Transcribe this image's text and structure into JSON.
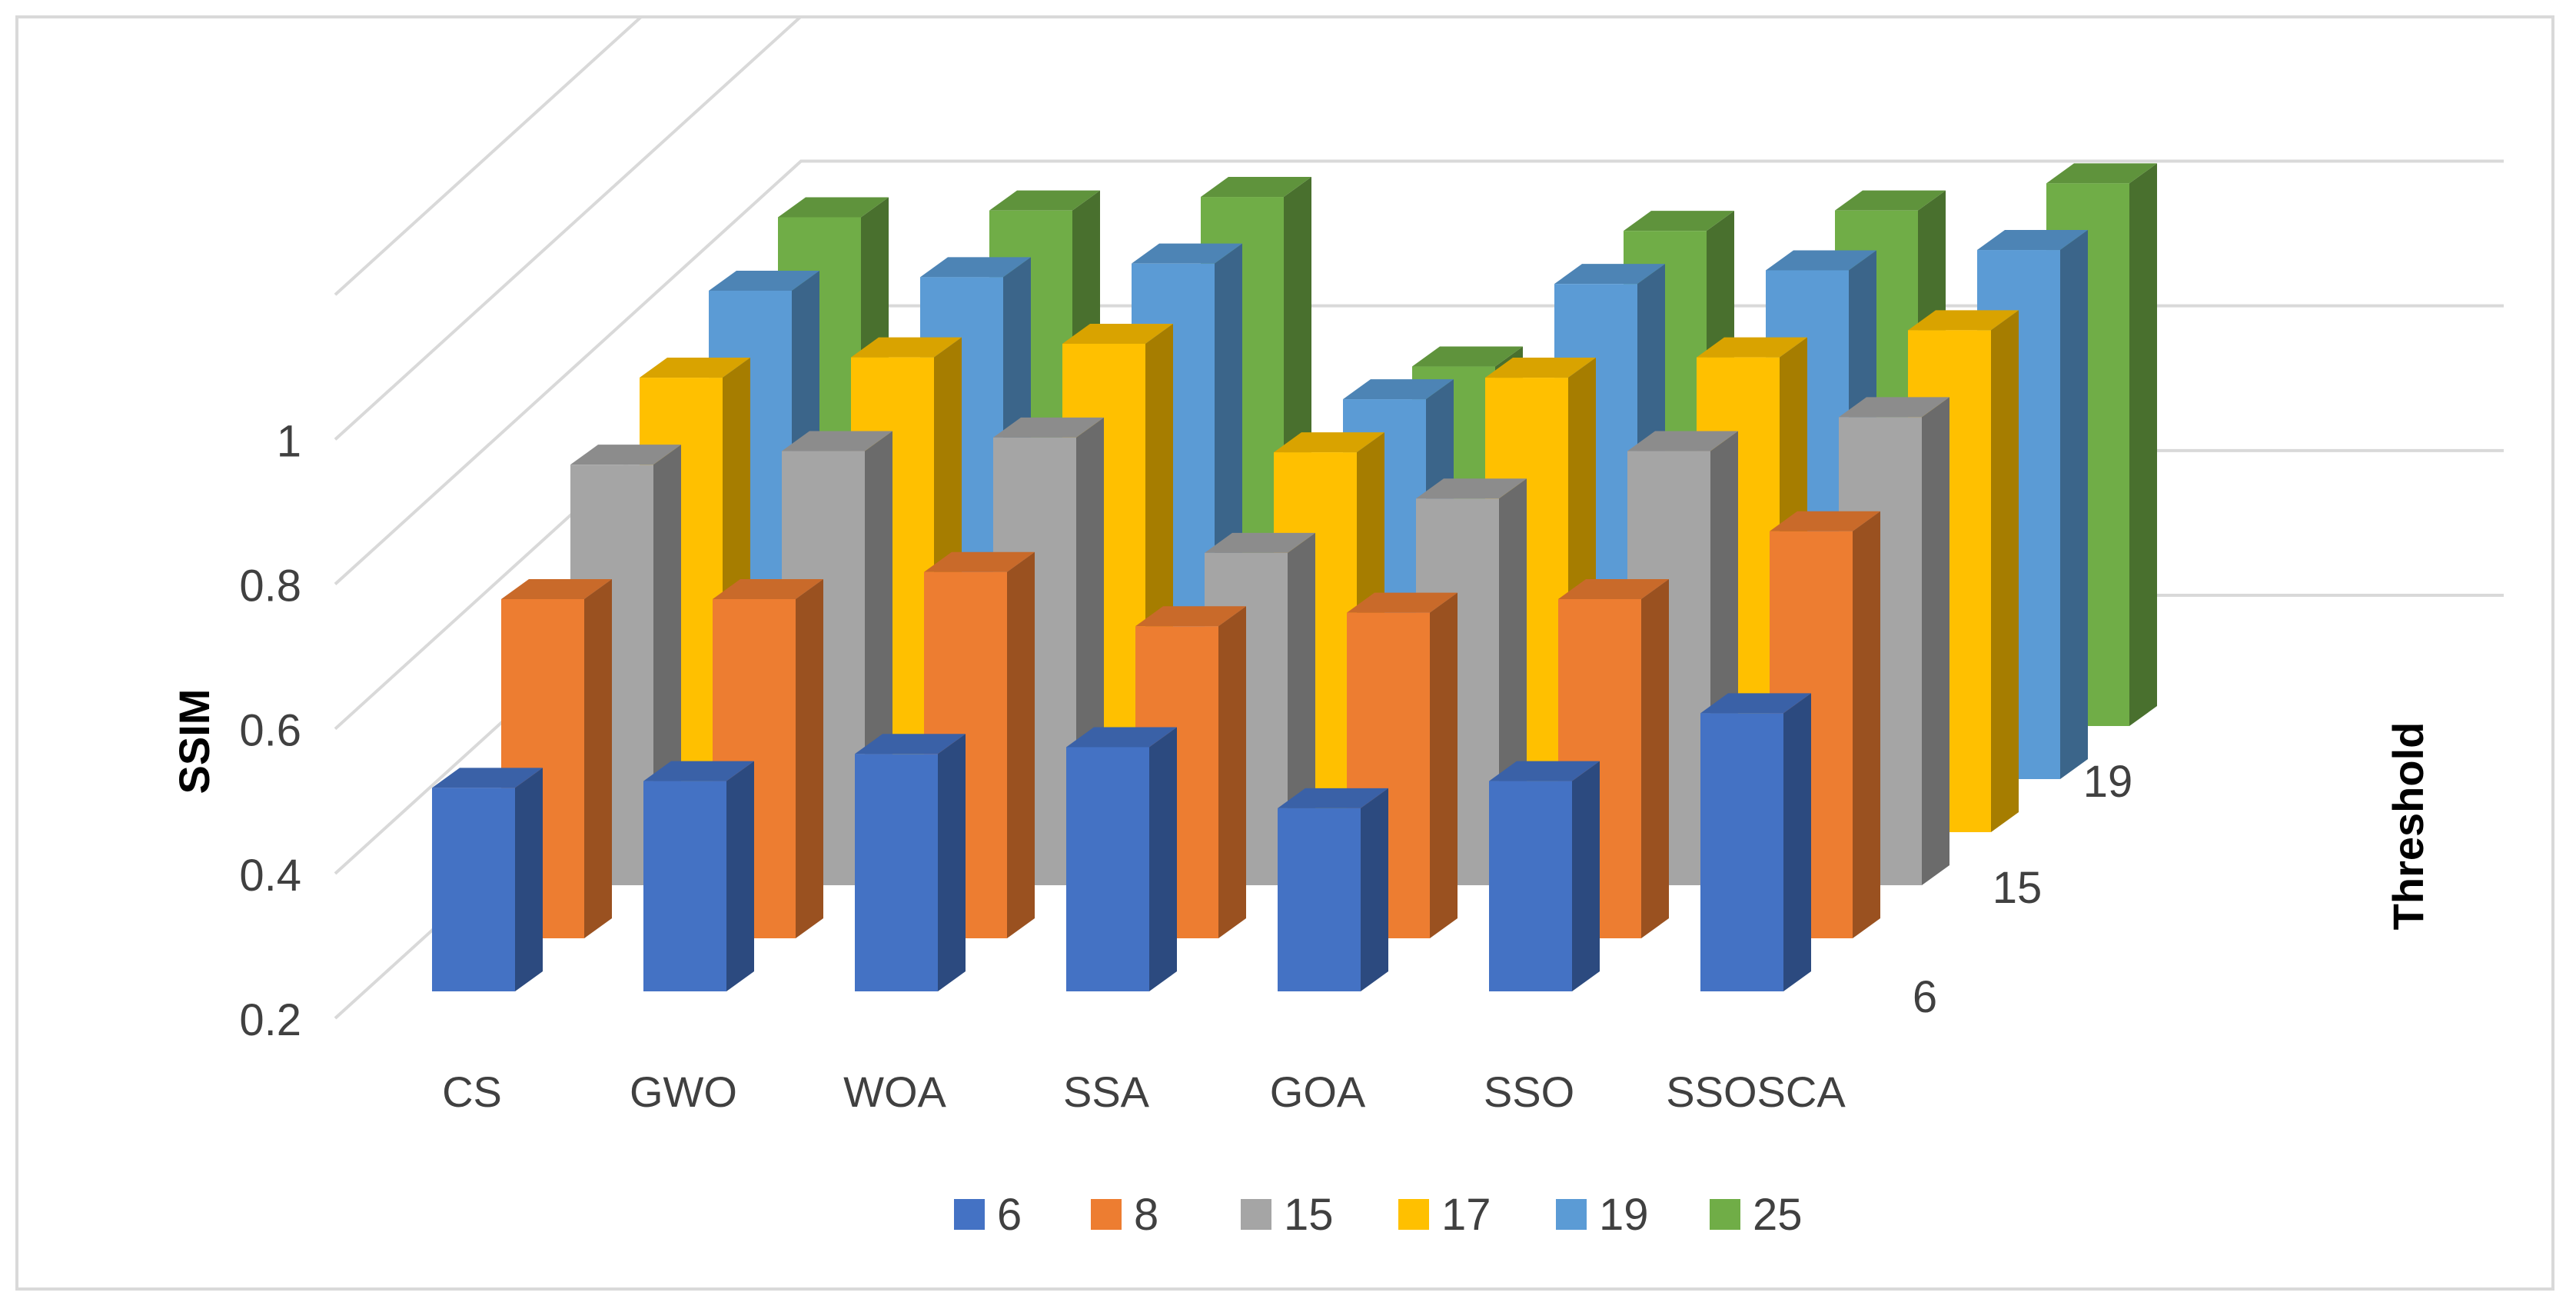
{
  "chart_data": {
    "type": "bar",
    "subtype": "3d-column",
    "title": "",
    "ylabel": "SSIM",
    "zlabel": "Threshold",
    "ylim": [
      0.2,
      1.2
    ],
    "yticks": [
      "0.2",
      "0.4",
      "0.6",
      "0.8",
      "1"
    ],
    "categories": [
      "CS",
      "GWO",
      "WOA",
      "SSA",
      "GOA",
      "SSO",
      "SSOSCA"
    ],
    "depth_labels": [
      "6",
      "15",
      "19"
    ],
    "series": [
      {
        "name": "6",
        "color": "#4472C4",
        "values": [
          0.5,
          0.51,
          0.55,
          0.56,
          0.47,
          0.51,
          0.61
        ]
      },
      {
        "name": "8",
        "color": "#ED7D31",
        "values": [
          0.7,
          0.7,
          0.74,
          0.66,
          0.68,
          0.7,
          0.8
        ]
      },
      {
        "name": "15",
        "color": "#A5A5A5",
        "values": [
          0.82,
          0.84,
          0.86,
          0.69,
          0.77,
          0.84,
          0.89
        ]
      },
      {
        "name": "17",
        "color": "#FFC000",
        "values": [
          0.87,
          0.9,
          0.92,
          0.76,
          0.87,
          0.9,
          0.94
        ]
      },
      {
        "name": "19",
        "color": "#5B9BD5",
        "values": [
          0.92,
          0.94,
          0.96,
          0.76,
          0.93,
          0.95,
          0.98
        ]
      },
      {
        "name": "25",
        "color": "#70AD47",
        "values": [
          0.95,
          0.96,
          0.98,
          0.73,
          0.93,
          0.96,
          1.0
        ]
      }
    ],
    "legend": {
      "position": "bottom"
    },
    "grid": true
  }
}
